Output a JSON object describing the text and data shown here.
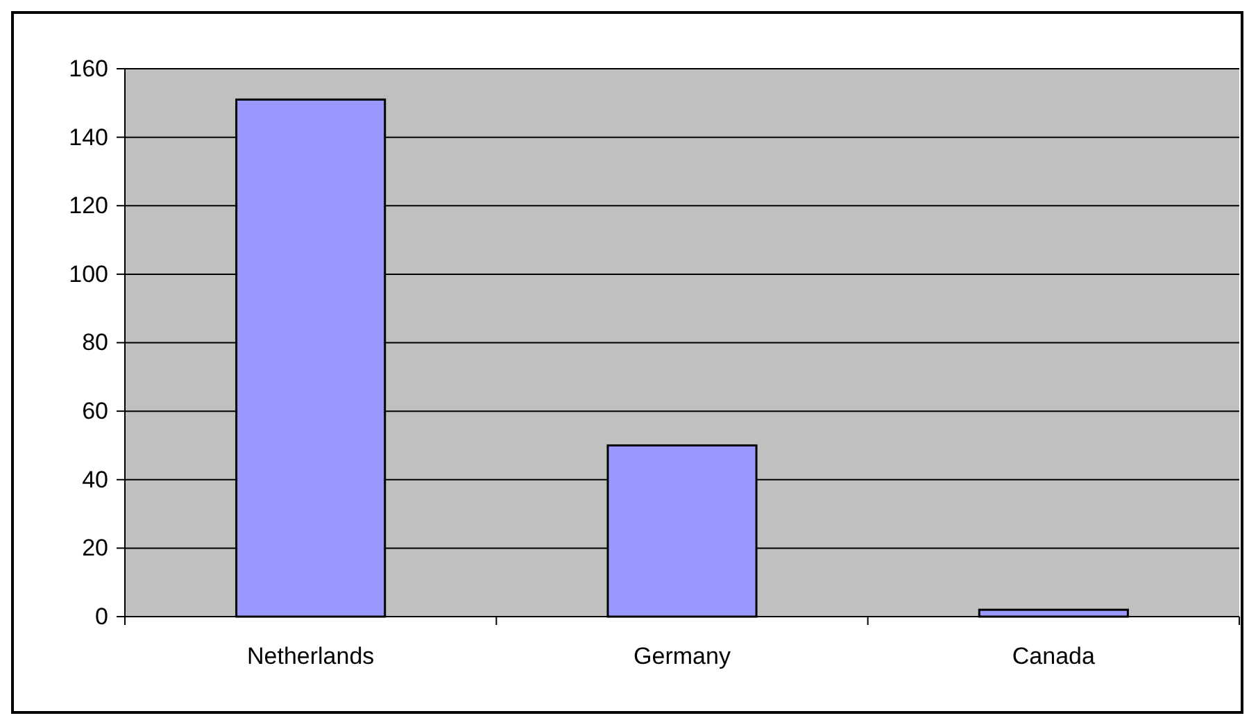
{
  "chart_data": {
    "type": "bar",
    "categories": [
      "Netherlands",
      "Germany",
      "Canada"
    ],
    "values": [
      151,
      50,
      2
    ],
    "color": "#9999ff",
    "ylim": [
      0,
      160
    ],
    "yticks": [
      0,
      20,
      40,
      60,
      80,
      100,
      120,
      140,
      160
    ],
    "grid": "y"
  }
}
